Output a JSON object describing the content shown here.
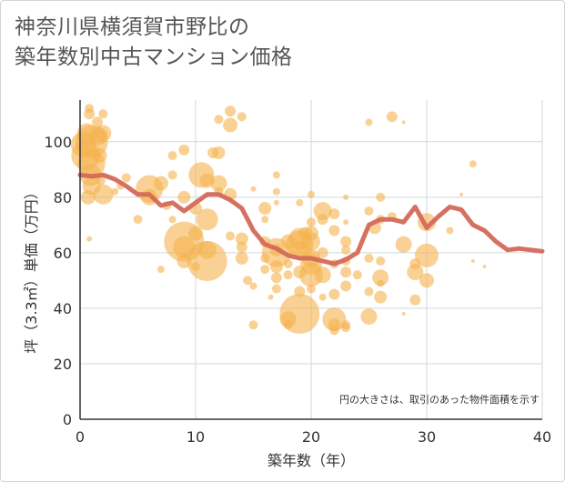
{
  "chart_data": {
    "type": "scatter",
    "title": "神奈川県横須賀市野比の\n築年数別中古マンション価格",
    "xlabel": "築年数（年）",
    "ylabel": "坪（3.3㎡）単価（万円）",
    "note": "円の大きさは、取引のあった物件面積を示す",
    "xlim": [
      0,
      40
    ],
    "ylim": [
      0,
      115
    ],
    "xticks": [
      "0",
      "10",
      "20",
      "30",
      "40"
    ],
    "yticks": [
      "0",
      "20",
      "40",
      "60",
      "80",
      "100"
    ],
    "grid": true,
    "colors": {
      "bubble": "#f5b24c",
      "trend": "#d4695a",
      "grid": "#d0d7de",
      "axis": "#333333"
    },
    "series": [
      {
        "kind": "bubbles",
        "points": [
          [
            0.3,
            99,
            14
          ],
          [
            0.5,
            95,
            16
          ],
          [
            0.6,
            103,
            11
          ],
          [
            0.8,
            110,
            6
          ],
          [
            0.8,
            112,
            5
          ],
          [
            0.9,
            88,
            12
          ],
          [
            1,
            100,
            18
          ],
          [
            1,
            92,
            15
          ],
          [
            1,
            84,
            10
          ],
          [
            0.7,
            80,
            8
          ],
          [
            0.8,
            65,
            3
          ],
          [
            1.5,
            107,
            6
          ],
          [
            1.6,
            102,
            10
          ],
          [
            1.7,
            95,
            8
          ],
          [
            2,
            110,
            5
          ],
          [
            2,
            103,
            9
          ],
          [
            2,
            81,
            11
          ],
          [
            1.8,
            86,
            5
          ],
          [
            3,
            82,
            4
          ],
          [
            3.5,
            84,
            4
          ],
          [
            4,
            87,
            5
          ],
          [
            5,
            72,
            5
          ],
          [
            6,
            83,
            15
          ],
          [
            6,
            80,
            9
          ],
          [
            7,
            85,
            8
          ],
          [
            7,
            54,
            4
          ],
          [
            7.5,
            77,
            5
          ],
          [
            8,
            72,
            4
          ],
          [
            8,
            95,
            5
          ],
          [
            8,
            88,
            5
          ],
          [
            9,
            97,
            6
          ],
          [
            9,
            80,
            7
          ],
          [
            9,
            64,
            22
          ],
          [
            9,
            62,
            12
          ],
          [
            9,
            57,
            8
          ],
          [
            10,
            76,
            7
          ],
          [
            10,
            67,
            8
          ],
          [
            10,
            55,
            5
          ],
          [
            10.5,
            88,
            14
          ],
          [
            11,
            86,
            8
          ],
          [
            11,
            72,
            12
          ],
          [
            11,
            61,
            10
          ],
          [
            11,
            57,
            22
          ],
          [
            11.5,
            96,
            6
          ],
          [
            12,
            108,
            5
          ],
          [
            12,
            96,
            7
          ],
          [
            12,
            85,
            9
          ],
          [
            12,
            82,
            5
          ],
          [
            13,
            106,
            8
          ],
          [
            13,
            111,
            6
          ],
          [
            13,
            81,
            7
          ],
          [
            13,
            66,
            5
          ],
          [
            14,
            109,
            5
          ],
          [
            14,
            65,
            7
          ],
          [
            14,
            58,
            7
          ],
          [
            14,
            62,
            6
          ],
          [
            14.5,
            50,
            5
          ],
          [
            15,
            83,
            3
          ],
          [
            15,
            48,
            4
          ],
          [
            15,
            34,
            5
          ],
          [
            16,
            72,
            4
          ],
          [
            16,
            64,
            6
          ],
          [
            16,
            58,
            5
          ],
          [
            16,
            54,
            5
          ],
          [
            16,
            76,
            7
          ],
          [
            16.5,
            44,
            3
          ],
          [
            17,
            88,
            4
          ],
          [
            17,
            82,
            4
          ],
          [
            17,
            78,
            3
          ],
          [
            17,
            61,
            7
          ],
          [
            17,
            60,
            16
          ],
          [
            17,
            55,
            7
          ],
          [
            17,
            51,
            6
          ],
          [
            17,
            47,
            5
          ],
          [
            18,
            64,
            8
          ],
          [
            18,
            56,
            5
          ],
          [
            18,
            52,
            5
          ],
          [
            18,
            36,
            9
          ],
          [
            18,
            34,
            5
          ],
          [
            19,
            63,
            15
          ],
          [
            19,
            65,
            12
          ],
          [
            19,
            61,
            10
          ],
          [
            19,
            78,
            4
          ],
          [
            19,
            53,
            7
          ],
          [
            19,
            46,
            6
          ],
          [
            19,
            38,
            22
          ],
          [
            19.5,
            67,
            7
          ],
          [
            20,
            58,
            10
          ],
          [
            20,
            56,
            12
          ],
          [
            20,
            52,
            13
          ],
          [
            20,
            81,
            4
          ],
          [
            20,
            71,
            5
          ],
          [
            20,
            67,
            8
          ],
          [
            20,
            47,
            5
          ],
          [
            20,
            64,
            10
          ],
          [
            21,
            75,
            10
          ],
          [
            21,
            72,
            6
          ],
          [
            21,
            60,
            6
          ],
          [
            21,
            52,
            9
          ],
          [
            21,
            44,
            4
          ],
          [
            22,
            74,
            6
          ],
          [
            22,
            68,
            6
          ],
          [
            22,
            56,
            5
          ],
          [
            22,
            45,
            6
          ],
          [
            22,
            36,
            13
          ],
          [
            22,
            34,
            7
          ],
          [
            22,
            32,
            5
          ],
          [
            23,
            80,
            3
          ],
          [
            23,
            71,
            3
          ],
          [
            23,
            64,
            6
          ],
          [
            23,
            61,
            5
          ],
          [
            23,
            57,
            5
          ],
          [
            23,
            53,
            6
          ],
          [
            23,
            48,
            6
          ],
          [
            23,
            34,
            5
          ],
          [
            23,
            33,
            5
          ],
          [
            24,
            52,
            5
          ],
          [
            25,
            107,
            4
          ],
          [
            25,
            75,
            5
          ],
          [
            25,
            58,
            5
          ],
          [
            25,
            46,
            5
          ],
          [
            25,
            37,
            9
          ],
          [
            25.5,
            69,
            7
          ],
          [
            26,
            80,
            5
          ],
          [
            26,
            72,
            5
          ],
          [
            26,
            57,
            5
          ],
          [
            26,
            51,
            9
          ],
          [
            26,
            49,
            4
          ],
          [
            26,
            44,
            7
          ],
          [
            27,
            109,
            6
          ],
          [
            27,
            73,
            5
          ],
          [
            28,
            107,
            2
          ],
          [
            28,
            63,
            9
          ],
          [
            28,
            38,
            2
          ],
          [
            29,
            56,
            6
          ],
          [
            29,
            53,
            9
          ],
          [
            29,
            43,
            6
          ],
          [
            30,
            71,
            10
          ],
          [
            30,
            50,
            8
          ],
          [
            30,
            59,
            13
          ],
          [
            32,
            68,
            4
          ],
          [
            33,
            81,
            2
          ],
          [
            34,
            92,
            4
          ],
          [
            34,
            70,
            2
          ],
          [
            34,
            57,
            2
          ],
          [
            35,
            55,
            2
          ]
        ]
      },
      {
        "kind": "line",
        "name": "",
        "x": [
          0,
          1,
          2,
          3,
          4,
          5,
          6,
          7,
          8,
          9,
          10,
          11,
          12,
          13,
          14,
          15,
          16,
          17,
          18,
          19,
          20,
          21,
          22,
          23,
          24,
          25,
          26,
          27,
          28,
          29,
          30,
          31,
          32,
          33,
          34,
          35,
          36,
          37,
          38,
          39,
          40
        ],
        "y": [
          88,
          87.5,
          88,
          86.5,
          84,
          81,
          81,
          77,
          78,
          75,
          78,
          81,
          81,
          79,
          76,
          68,
          63,
          61.5,
          59,
          58,
          58,
          57,
          56,
          57.5,
          60,
          70,
          72,
          72,
          71,
          76.5,
          69,
          73,
          76.5,
          75.5,
          70,
          68,
          64,
          61,
          61.5,
          61,
          60.5
        ]
      }
    ]
  }
}
